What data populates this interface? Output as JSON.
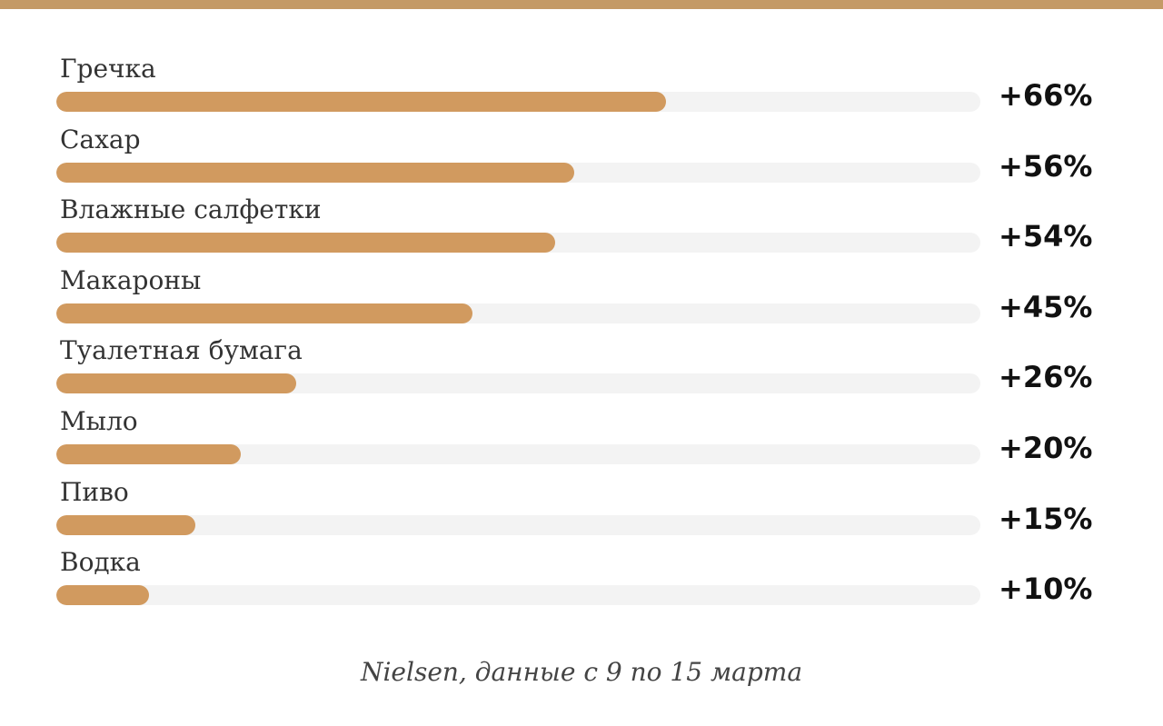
{
  "colors": {
    "accent": "#c49a66",
    "bar_fill": "#d19a5f",
    "bar_track": "#f3f3f3",
    "text": "#111111"
  },
  "chart_data": {
    "type": "bar",
    "orientation": "horizontal",
    "categories": [
      "Гречка",
      "Сахар",
      "Влажные салфетки",
      "Макароны",
      "Туалетная бумага",
      "Мыло",
      "Пиво",
      "Водка"
    ],
    "values": [
      66,
      56,
      54,
      45,
      26,
      20,
      15,
      10
    ],
    "value_labels": [
      "+66%",
      "+56%",
      "+54%",
      "+45%",
      "+26%",
      "+20%",
      "+15%",
      "+10%"
    ],
    "xlim": [
      0,
      100
    ],
    "title": "",
    "xlabel": "",
    "ylabel": "",
    "grid": false,
    "legend": false
  },
  "source": "Nielsen, данные с 9 по 15 марта"
}
